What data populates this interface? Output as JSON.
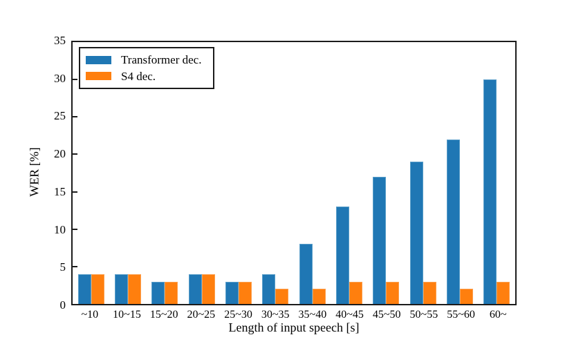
{
  "chart_data": {
    "type": "bar",
    "title": "",
    "xlabel": "Length of input speech [s]",
    "ylabel": "WER [%]",
    "categories": [
      "~10",
      "10~15",
      "15~20",
      "20~25",
      "25~30",
      "30~35",
      "35~40",
      "40~45",
      "45~50",
      "50~55",
      "55~60",
      "60~"
    ],
    "series": [
      {
        "name": "Transformer dec.",
        "color": "#1f77b4",
        "edge_color": "#5a9ec9",
        "values": [
          4,
          4,
          3,
          4,
          3,
          4,
          8,
          13,
          17,
          19,
          22,
          30
        ]
      },
      {
        "name": "S4 dec.",
        "color": "#ff7f0e",
        "edge_color": "#fca04f",
        "values": [
          4,
          4,
          3,
          4,
          3,
          2,
          2,
          3,
          3,
          3,
          2,
          3
        ]
      }
    ],
    "ylim": [
      0,
      35
    ],
    "yticks": [
      0,
      5,
      10,
      15,
      20,
      25,
      30,
      35
    ],
    "grid": false,
    "legend_position": "upper-left",
    "axis_color": "#1b1b1b",
    "background": "#ffffff"
  }
}
